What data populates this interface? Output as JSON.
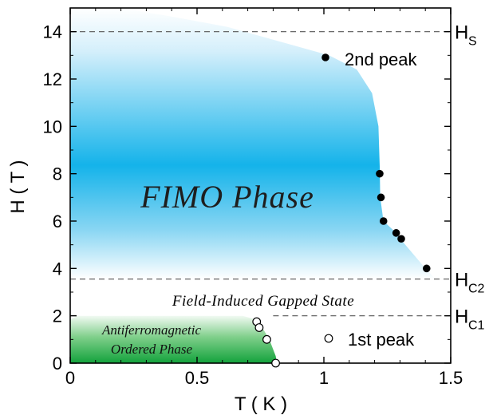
{
  "chart_data": {
    "type": "scatter",
    "xlabel": "T ( K )",
    "ylabel": "H ( T )",
    "xlim": [
      0,
      1.5
    ],
    "ylim": [
      0,
      15
    ],
    "x_ticks": [
      "0",
      "0.5",
      "1",
      "1.5"
    ],
    "y_ticks": [
      "0",
      "2",
      "4",
      "6",
      "8",
      "10",
      "12",
      "14"
    ],
    "series": [
      {
        "name": "2nd peak",
        "marker": "filled-circle",
        "x": [
          1.22,
          1.225,
          1.235,
          1.285,
          1.305,
          1.405
        ],
        "y": [
          8.0,
          7.0,
          6.0,
          5.5,
          5.25,
          4.0
        ]
      },
      {
        "name": "1st peak",
        "marker": "open-circle",
        "x": [
          0.735,
          0.745,
          0.775,
          0.81
        ],
        "y": [
          1.75,
          1.5,
          1.0,
          0.0
        ]
      }
    ],
    "reference_lines": [
      {
        "y": 14.0,
        "label": "H",
        "sub": "S"
      },
      {
        "y": 3.55,
        "label": "H",
        "sub": "C2"
      },
      {
        "y": 2.0,
        "label": "H",
        "sub": "C1"
      }
    ],
    "regions": {
      "fimo": "FIMO Phase",
      "gapped": "Field-Induced Gapped State",
      "af_line1": "Antiferromagnetic",
      "af_line2": "Ordered Phase"
    },
    "legend_placement": "right (inside)",
    "grid": false
  },
  "colors": {
    "fimo_blue": "#14b3ea",
    "af_green": "#18a13c",
    "axis": "#000000",
    "dashed_line": "#555555"
  }
}
